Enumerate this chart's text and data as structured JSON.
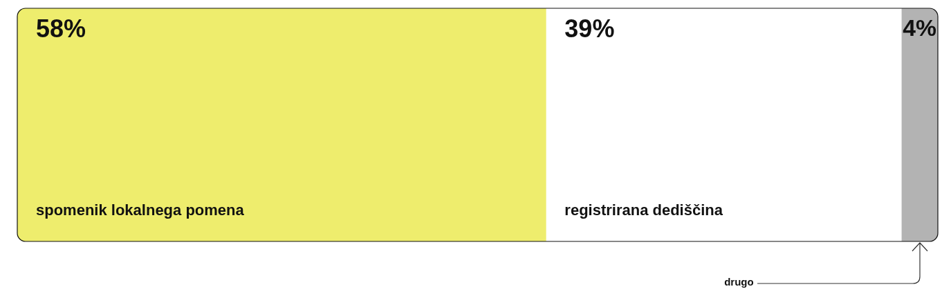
{
  "chart_data": {
    "type": "bar",
    "orientation": "horizontal",
    "stacked": true,
    "categories": [
      null
    ],
    "xlim": [
      0,
      101
    ],
    "tick_labels": false,
    "legend": false,
    "series": [
      {
        "name": "spomenik lokalnega pomena",
        "color": "#eeed6d",
        "values": [
          58
        ],
        "value_labels": [
          "58%"
        ]
      },
      {
        "name": "registrirana dediščina",
        "color": "#ffffff",
        "values": [
          39
        ],
        "value_labels": [
          "39%"
        ]
      },
      {
        "name": "drugo",
        "color": "#b3b3b3",
        "values": [
          4
        ],
        "value_labels": [
          "4%"
        ]
      }
    ]
  }
}
